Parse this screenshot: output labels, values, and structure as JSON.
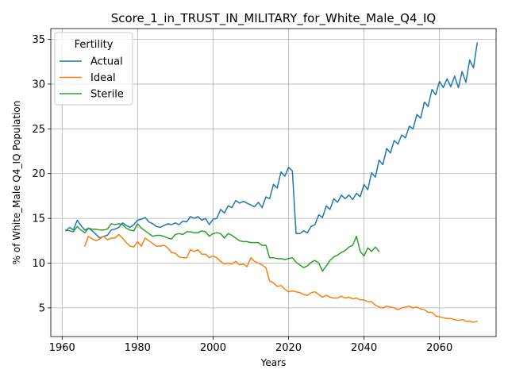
{
  "chart_data": {
    "type": "line",
    "title": "Score_1_in_TRUST_IN_MILITARY_for_White_Male_Q4_IQ",
    "xlabel": "Years",
    "ylabel": "% of White_Male Q4_IQ Population",
    "xlim": [
      1957,
      2075
    ],
    "ylim": [
      1.8,
      36.2
    ],
    "xticks": [
      1960,
      1980,
      2000,
      2020,
      2040,
      2060
    ],
    "yticks": [
      5,
      10,
      15,
      20,
      25,
      30,
      35
    ],
    "grid": true,
    "legend": {
      "title": "Fertility",
      "placement": "top-left"
    },
    "series": [
      {
        "name": "Actual",
        "color": "#1f77b4",
        "x": [
          1961,
          1962,
          1963,
          1964,
          1965,
          1966,
          1967,
          1968,
          1969,
          1970,
          1971,
          1972,
          1973,
          1974,
          1975,
          1976,
          1977,
          1978,
          1979,
          1980,
          1981,
          1982,
          1983,
          1984,
          1985,
          1986,
          1987,
          1988,
          1989,
          1990,
          1991,
          1992,
          1993,
          1994,
          1995,
          1996,
          1997,
          1998,
          1999,
          2000,
          2001,
          2002,
          2003,
          2004,
          2005,
          2006,
          2007,
          2008,
          2009,
          2010,
          2011,
          2012,
          2013,
          2014,
          2015,
          2016,
          2017,
          2018,
          2019,
          2020,
          2021,
          2022,
          2023,
          2024,
          2025,
          2026,
          2027,
          2028,
          2029,
          2030,
          2031,
          2032,
          2033,
          2034,
          2035,
          2036,
          2037,
          2038,
          2039,
          2040,
          2041,
          2042,
          2043,
          2044,
          2045,
          2046,
          2047,
          2048,
          2049,
          2050,
          2051,
          2052,
          2053,
          2054,
          2055,
          2056,
          2057,
          2058,
          2059,
          2060,
          2061,
          2062,
          2063,
          2064,
          2065,
          2066,
          2067,
          2068,
          2069,
          2070
        ],
        "values": [
          13.6,
          14.0,
          13.7,
          14.8,
          14.2,
          13.7,
          13.9,
          13.6,
          13.2,
          12.8,
          13.0,
          13.1,
          13.7,
          13.8,
          14.0,
          14.5,
          14.2,
          14.0,
          14.3,
          14.8,
          14.9,
          15.1,
          14.6,
          14.4,
          14.1,
          14.0,
          14.2,
          14.4,
          14.3,
          14.5,
          14.3,
          14.7,
          14.6,
          15.2,
          15.0,
          15.2,
          14.8,
          15.0,
          14.3,
          14.9,
          15.0,
          16.0,
          15.6,
          16.4,
          16.2,
          17.0,
          16.7,
          16.9,
          16.7,
          16.5,
          16.3,
          16.8,
          16.2,
          17.4,
          17.2,
          18.8,
          18.4,
          20.2,
          19.7,
          20.7,
          20.3,
          13.3,
          13.3,
          13.6,
          13.4,
          14.1,
          14.3,
          15.4,
          15.1,
          16.4,
          16.0,
          17.2,
          16.8,
          17.6,
          17.2,
          17.6,
          17.1,
          17.8,
          17.4,
          18.8,
          18.2,
          20.1,
          19.6,
          21.5,
          21.0,
          22.8,
          22.3,
          23.7,
          23.3,
          24.3,
          24.0,
          25.3,
          25.0,
          26.6,
          26.2,
          28.0,
          27.5,
          29.4,
          28.8,
          30.3,
          29.6,
          30.6,
          29.7,
          30.9,
          29.6,
          31.4,
          30.2,
          32.7,
          31.8,
          34.6
        ]
      },
      {
        "name": "Ideal",
        "color": "#ff7f0e",
        "x": [
          1966,
          1967,
          1968,
          1969,
          1970,
          1971,
          1972,
          1973,
          1974,
          1975,
          1976,
          1977,
          1978,
          1979,
          1980,
          1981,
          1982,
          1983,
          1984,
          1985,
          1986,
          1987,
          1988,
          1989,
          1990,
          1991,
          1992,
          1993,
          1994,
          1995,
          1996,
          1997,
          1998,
          1999,
          2000,
          2001,
          2002,
          2003,
          2004,
          2005,
          2006,
          2007,
          2008,
          2009,
          2010,
          2011,
          2012,
          2013,
          2014,
          2015,
          2016,
          2017,
          2018,
          2019,
          2020,
          2021,
          2022,
          2023,
          2024,
          2025,
          2026,
          2027,
          2028,
          2029,
          2030,
          2031,
          2032,
          2033,
          2034,
          2035,
          2036,
          2037,
          2038,
          2039,
          2040,
          2041,
          2042,
          2043,
          2044,
          2045,
          2046,
          2047,
          2048,
          2049,
          2050,
          2051,
          2052,
          2053,
          2054,
          2055,
          2056,
          2057,
          2058,
          2059,
          2060,
          2061,
          2062,
          2063,
          2064,
          2065,
          2066,
          2067,
          2068,
          2069,
          2070
        ],
        "values": [
          11.9,
          13.0,
          12.7,
          12.5,
          12.7,
          13.0,
          12.6,
          12.8,
          12.8,
          13.2,
          12.8,
          12.3,
          11.9,
          11.8,
          12.4,
          11.9,
          12.8,
          12.5,
          12.2,
          11.9,
          11.9,
          12.0,
          11.7,
          11.2,
          11.1,
          10.7,
          10.6,
          10.6,
          11.5,
          11.3,
          11.5,
          11.0,
          11.0,
          10.6,
          10.8,
          10.6,
          10.2,
          9.9,
          10.0,
          9.9,
          10.2,
          9.8,
          9.9,
          9.6,
          10.6,
          10.2,
          10.0,
          9.8,
          9.5,
          8.0,
          7.8,
          7.4,
          7.5,
          7.1,
          6.8,
          6.9,
          6.8,
          6.7,
          6.5,
          6.4,
          6.7,
          6.8,
          6.5,
          6.2,
          6.4,
          6.2,
          6.1,
          6.1,
          6.3,
          6.1,
          6.2,
          6.0,
          6.1,
          5.9,
          5.9,
          5.7,
          5.7,
          5.3,
          5.1,
          5.0,
          5.2,
          5.1,
          5.0,
          4.8,
          5.0,
          5.1,
          5.2,
          5.0,
          5.1,
          4.9,
          4.8,
          4.5,
          4.5,
          4.1,
          4.0,
          3.9,
          3.8,
          3.8,
          3.7,
          3.6,
          3.7,
          3.5,
          3.5,
          3.4,
          3.5
        ]
      },
      {
        "name": "Sterile",
        "color": "#2ca02c",
        "x": [
          1961,
          1962,
          1963,
          1964,
          1965,
          1966,
          1967,
          1968,
          1969,
          1970,
          1971,
          1972,
          1973,
          1974,
          1975,
          1976,
          1977,
          1978,
          1979,
          1980,
          1981,
          1982,
          1983,
          1984,
          1985,
          1986,
          1987,
          1988,
          1989,
          1990,
          1991,
          1992,
          1993,
          1994,
          1995,
          1996,
          1997,
          1998,
          1999,
          2000,
          2001,
          2002,
          2003,
          2004,
          2005,
          2006,
          2007,
          2008,
          2009,
          2010,
          2011,
          2012,
          2013,
          2014,
          2015,
          2016,
          2017,
          2018,
          2019,
          2020,
          2021,
          2022,
          2023,
          2024,
          2025,
          2026,
          2027,
          2028,
          2029,
          2030,
          2031,
          2032,
          2033,
          2034,
          2035,
          2036,
          2037,
          2038,
          2039,
          2040,
          2041,
          2042,
          2043,
          2044
        ],
        "values": [
          13.7,
          13.6,
          13.5,
          14.1,
          13.7,
          13.4,
          13.9,
          13.8,
          13.8,
          13.7,
          13.7,
          13.8,
          14.4,
          14.3,
          14.4,
          14.3,
          13.9,
          13.7,
          13.6,
          14.4,
          13.9,
          13.6,
          13.3,
          13.0,
          13.1,
          13.1,
          13.0,
          12.8,
          12.7,
          13.2,
          13.3,
          13.2,
          13.5,
          13.5,
          13.4,
          13.4,
          13.6,
          13.5,
          13.0,
          13.3,
          13.4,
          13.3,
          12.8,
          13.3,
          13.1,
          12.8,
          12.5,
          12.4,
          12.4,
          12.3,
          12.3,
          12.3,
          12.0,
          12.0,
          10.6,
          10.6,
          10.5,
          10.5,
          10.4,
          10.5,
          10.6,
          10.1,
          9.8,
          9.5,
          9.7,
          10.1,
          10.3,
          10.0,
          9.1,
          9.7,
          10.3,
          10.7,
          10.9,
          11.2,
          11.4,
          11.8,
          12.0,
          13.0,
          11.3,
          10.8,
          11.7,
          11.3,
          11.8,
          11.3
        ]
      }
    ]
  }
}
